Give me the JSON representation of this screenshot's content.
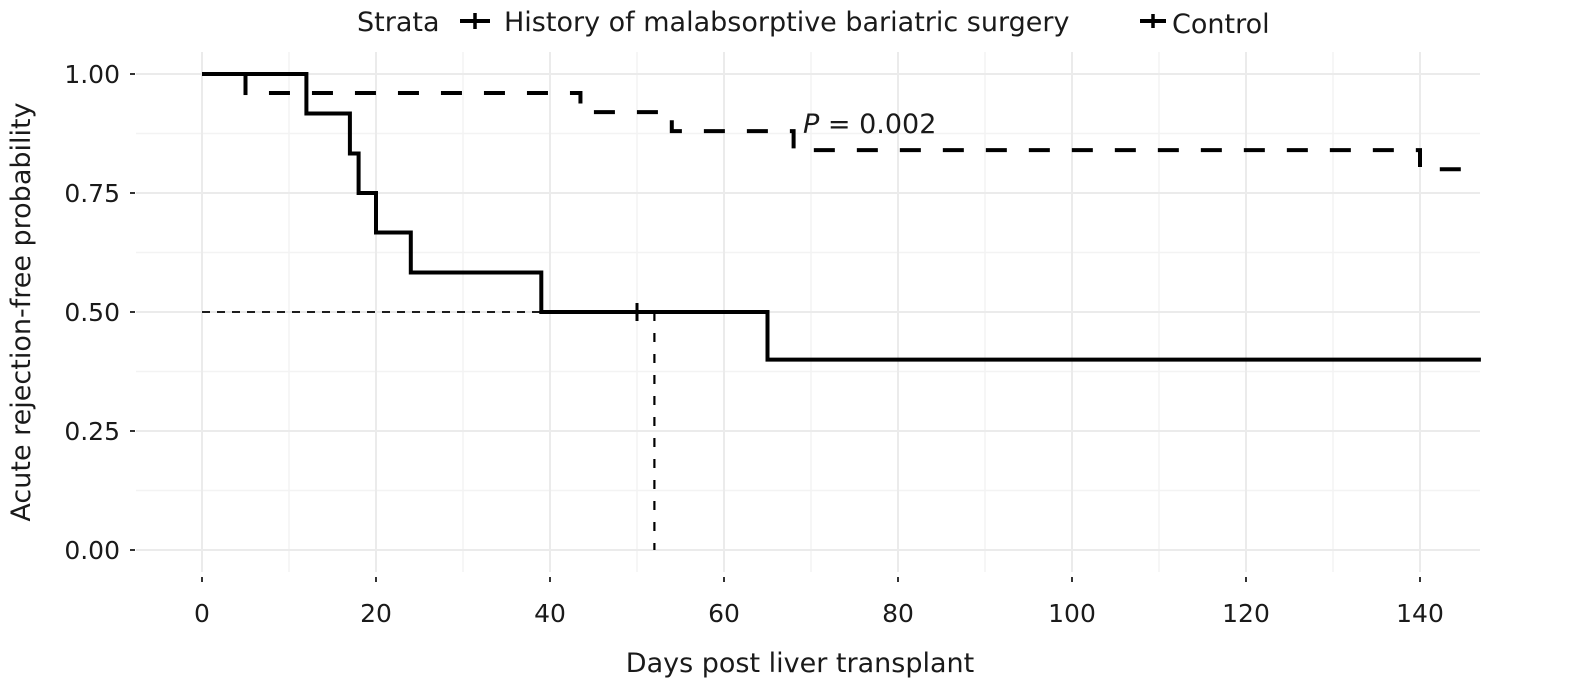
{
  "chart_data": {
    "type": "line",
    "subtype": "kaplan-meier step",
    "title": "",
    "xlabel": "Days post liver transplant",
    "ylabel": "Acute rejection-free probability",
    "xlim": [
      0,
      147
    ],
    "ylim": [
      0,
      1
    ],
    "x_ticks": [
      0,
      20,
      40,
      60,
      80,
      100,
      120,
      140
    ],
    "x_tick_labels": [
      "0",
      "20",
      "40",
      "60",
      "80",
      "100",
      "120",
      "140"
    ],
    "y_ticks": [
      0,
      0.25,
      0.5,
      0.75,
      1.0
    ],
    "y_tick_labels": [
      "0.00",
      "0.25",
      "0.50",
      "0.75",
      "1.00"
    ],
    "grid": true,
    "legend": {
      "title": "Strata",
      "placement": "top",
      "entries": [
        "History of malabsorptive bariatric surgery",
        "Control"
      ]
    },
    "annotation": {
      "italic": "P",
      "text": " = 0.002",
      "x": 69,
      "y": 0.895
    },
    "median_reference": {
      "y": 0.5,
      "x": 52
    },
    "series": [
      {
        "name": "History of malabsorptive bariatric surgery",
        "style": "solid",
        "color": "#000000",
        "steps": [
          [
            0,
            1.0
          ],
          [
            12,
            0.917
          ],
          [
            17,
            0.833
          ],
          [
            18,
            0.75
          ],
          [
            20,
            0.667
          ],
          [
            24,
            0.583
          ],
          [
            39,
            0.5
          ],
          [
            65,
            0.4
          ],
          [
            147,
            0.4
          ]
        ],
        "censor_marks": [
          [
            50,
            0.5
          ]
        ]
      },
      {
        "name": "Control",
        "style": "dashed",
        "color": "#000000",
        "steps": [
          [
            0,
            1.0
          ],
          [
            5,
            0.96
          ],
          [
            43.5,
            0.92
          ],
          [
            54,
            0.88
          ],
          [
            68,
            0.84
          ],
          [
            140,
            0.8
          ],
          [
            147,
            0.8
          ]
        ],
        "censor_marks": []
      }
    ]
  }
}
